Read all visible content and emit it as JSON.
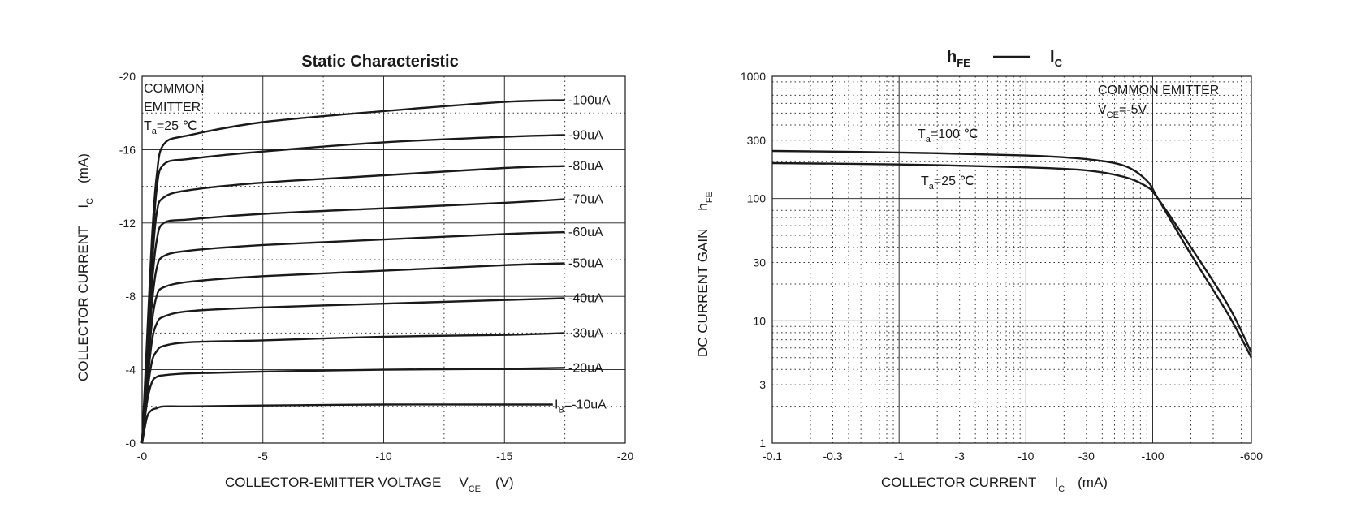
{
  "chart_data": [
    {
      "type": "line",
      "title": "Static Characteristic",
      "xlabel": "COLLECTOR-EMITTER VOLTAGE",
      "xlabel_symbol": "V",
      "xlabel_sub": "CE",
      "xlabel_unit": "(V)",
      "ylabel": "COLLECTOR CURRENT",
      "ylabel_symbol": "I",
      "ylabel_sub": "C",
      "ylabel_unit": "(mA)",
      "xlim": [
        0,
        -20
      ],
      "ylim": [
        0,
        -20
      ],
      "x_ticks": [
        {
          "v": 0,
          "label": "-0"
        },
        {
          "v": -5,
          "label": "-5"
        },
        {
          "v": -10,
          "label": "-10"
        },
        {
          "v": -15,
          "label": "-15"
        },
        {
          "v": -20,
          "label": "-20"
        }
      ],
      "y_ticks": [
        {
          "v": 0,
          "label": "-0"
        },
        {
          "v": -4,
          "label": "-4"
        },
        {
          "v": -8,
          "label": "-8"
        },
        {
          "v": -12,
          "label": "-12"
        },
        {
          "v": -16,
          "label": "-16"
        },
        {
          "v": -20,
          "label": "-20"
        }
      ],
      "grid": true,
      "annotation": {
        "line1": "COMMON",
        "line2": "EMITTER",
        "temp_symbol": "T",
        "temp_sub": "a",
        "temp_value": "=25 ℃"
      },
      "series": [
        {
          "name": "-100uA",
          "x": [
            0,
            -0.2,
            -0.4,
            -0.6,
            -0.9,
            -2,
            -5,
            -10,
            -15,
            -17.5
          ],
          "y": [
            0,
            -5.5,
            -11,
            -14.5,
            -16.3,
            -16.8,
            -17.5,
            -18.1,
            -18.6,
            -18.7
          ]
        },
        {
          "name": "-90uA",
          "x": [
            0,
            -0.2,
            -0.4,
            -0.6,
            -0.9,
            -2,
            -5,
            -10,
            -15,
            -17.5
          ],
          "y": [
            0,
            -5,
            -10,
            -13.8,
            -15.2,
            -15.5,
            -15.9,
            -16.4,
            -16.7,
            -16.8
          ]
        },
        {
          "name": "-80uA",
          "x": [
            0,
            -0.2,
            -0.4,
            -0.6,
            -0.9,
            -2,
            -5,
            -10,
            -15,
            -17.5
          ],
          "y": [
            0,
            -4.5,
            -9.5,
            -12.5,
            -13.4,
            -13.8,
            -14.2,
            -14.6,
            -15.0,
            -15.1
          ]
        },
        {
          "name": "-70uA",
          "x": [
            0,
            -0.2,
            -0.4,
            -0.6,
            -0.9,
            -2,
            -5,
            -10,
            -15,
            -17.5
          ],
          "y": [
            0,
            -4.2,
            -8.5,
            -11,
            -12,
            -12.2,
            -12.5,
            -12.8,
            -13.1,
            -13.3
          ]
        },
        {
          "name": "-60uA",
          "x": [
            0,
            -0.2,
            -0.4,
            -0.6,
            -0.9,
            -2,
            -5,
            -10,
            -15,
            -17.5
          ],
          "y": [
            0,
            -3.8,
            -7.5,
            -9.5,
            -10.2,
            -10.5,
            -10.8,
            -11.1,
            -11.4,
            -11.5
          ]
        },
        {
          "name": "-50uA",
          "x": [
            0,
            -0.2,
            -0.4,
            -0.6,
            -0.9,
            -2,
            -5,
            -10,
            -15,
            -17.5
          ],
          "y": [
            0,
            -3.4,
            -6.5,
            -8,
            -8.5,
            -8.8,
            -9.1,
            -9.4,
            -9.7,
            -9.8
          ]
        },
        {
          "name": "-40uA",
          "x": [
            0,
            -0.2,
            -0.4,
            -0.6,
            -0.9,
            -2,
            -5,
            -10,
            -15,
            -17.5
          ],
          "y": [
            0,
            -3,
            -5.5,
            -6.5,
            -6.9,
            -7.2,
            -7.4,
            -7.6,
            -7.8,
            -7.9
          ]
        },
        {
          "name": "-30uA",
          "x": [
            0,
            -0.2,
            -0.4,
            -0.6,
            -0.9,
            -2,
            -5,
            -10,
            -15,
            -17.5
          ],
          "y": [
            0,
            -2.6,
            -4.4,
            -5.0,
            -5.3,
            -5.5,
            -5.6,
            -5.8,
            -5.9,
            -6.0
          ]
        },
        {
          "name": "-20uA",
          "x": [
            0,
            -0.2,
            -0.4,
            -0.6,
            -0.9,
            -2,
            -5,
            -10,
            -15,
            -17.5
          ],
          "y": [
            0,
            -2.2,
            -3.3,
            -3.6,
            -3.7,
            -3.8,
            -3.9,
            -4.0,
            -4.05,
            -4.1
          ]
        },
        {
          "name": "I",
          "name_sub": "B",
          "name_tail": "=-10uA",
          "x": [
            0,
            -0.2,
            -0.4,
            -0.6,
            -0.9,
            -2,
            -5,
            -10,
            -15,
            -17
          ],
          "y": [
            0,
            -1.4,
            -1.8,
            -1.9,
            -2.0,
            -2.0,
            -2.05,
            -2.1,
            -2.1,
            -2.1
          ]
        }
      ]
    },
    {
      "type": "line",
      "title_symbol": "h",
      "title_sub": "FE",
      "title_symbol2": "I",
      "title_sub2": "C",
      "xlabel": "COLLECTOR CURRENT",
      "xlabel_symbol": "I",
      "xlabel_sub": "C",
      "xlabel_unit": "(mA)",
      "ylabel": "DC CURRENT GAIN",
      "ylabel_symbol": "h",
      "ylabel_sub": "FE",
      "x_scale": "log",
      "y_scale": "log",
      "xlim": [
        -0.1,
        -600
      ],
      "ylim": [
        1,
        1000
      ],
      "x_ticks": [
        {
          "v": 0.1,
          "label": "-0.1"
        },
        {
          "v": 0.3,
          "label": "-0.3"
        },
        {
          "v": 1,
          "label": "-1"
        },
        {
          "v": 3,
          "label": "-3"
        },
        {
          "v": 10,
          "label": "-10"
        },
        {
          "v": 30,
          "label": "-30"
        },
        {
          "v": 100,
          "label": "-100"
        },
        {
          "v": 600,
          "label": "-600"
        }
      ],
      "y_ticks": [
        {
          "v": 1,
          "label": "1"
        },
        {
          "v": 3,
          "label": "3"
        },
        {
          "v": 10,
          "label": "10"
        },
        {
          "v": 30,
          "label": "30"
        },
        {
          "v": 100,
          "label": "100"
        },
        {
          "v": 300,
          "label": "300"
        },
        {
          "v": 1000,
          "label": "1000"
        }
      ],
      "grid": true,
      "annotation": {
        "line1": "COMMON EMITTER",
        "v_symbol": "V",
        "v_sub": "CE",
        "v_value": "=-5V"
      },
      "series": [
        {
          "label_symbol": "T",
          "label_sub": "a",
          "label_value": "=100 ℃",
          "x": [
            -0.1,
            -1,
            -10,
            -30,
            -60,
            -90,
            -110,
            -200,
            -400,
            -600
          ],
          "y": [
            245,
            238,
            225,
            210,
            185,
            140,
            100,
            35,
            11,
            5
          ]
        },
        {
          "label_symbol": "T",
          "label_sub": "a",
          "label_value": "=25 ℃",
          "x": [
            -0.1,
            -1,
            -10,
            -30,
            -60,
            -90,
            -110,
            -200,
            -400,
            -600
          ],
          "y": [
            195,
            190,
            180,
            170,
            150,
            125,
            100,
            40,
            13,
            5.5
          ]
        }
      ]
    }
  ]
}
